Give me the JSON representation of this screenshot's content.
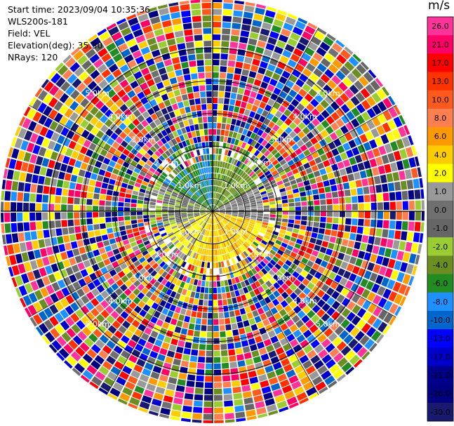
{
  "header": {
    "start_time": "Start time: 2023/09/04 10:35:36",
    "instrument": "WLS200s-181",
    "field": "Field: VEL",
    "elevation": "Elevation(deg): 35.30",
    "nrays": "NRays: 120"
  },
  "chart_data": {
    "type": "heatmap",
    "projection": "polar-ppi",
    "field": "VEL",
    "units": "m/s",
    "range_rings_km": [
      1.0,
      2.0,
      3.0,
      4.0,
      5.0
    ],
    "ring_labels": [
      "1.0km",
      "2.0km",
      "3.0km",
      "4.0km",
      "5.0km"
    ],
    "spokes_deg": [
      0,
      30,
      60,
      90,
      120,
      150,
      180,
      210,
      240,
      270,
      300,
      330
    ],
    "max_range_km": 6.5,
    "n_rays": 120,
    "colorbar": {
      "label": "m/s",
      "ticks": [
        "26.0",
        "21.0",
        "17.0",
        "13.0",
        "10.0",
        "8.0",
        "6.0",
        "4.0",
        "2.0",
        "1.0",
        "0.0",
        "-1.0",
        "-2.0",
        "-4.0",
        "-6.0",
        "-8.0",
        "-10.0",
        "-13.0",
        "-17.0",
        "-21.0",
        "-26.0",
        "-30.0"
      ],
      "colors": [
        "#ff3399",
        "#ff0066",
        "#ff0000",
        "#ff3300",
        "#ff5a1e",
        "#ff7f50",
        "#ff9900",
        "#ffcc00",
        "#ffff00",
        "#999999",
        "#707070",
        "#666666",
        "#9acd32",
        "#6b8e23",
        "#228b22",
        "#1e90ff",
        "#0066cc",
        "#0000ff",
        "#0000cd",
        "#00008b",
        "#000080",
        "#191970"
      ]
    },
    "near_field_sectors": [
      {
        "from_deg": 0,
        "to_deg": 60,
        "value": -4.0
      },
      {
        "from_deg": 60,
        "to_deg": 100,
        "value": 0.0
      },
      {
        "from_deg": 100,
        "to_deg": 200,
        "value": 4.0
      },
      {
        "from_deg": 200,
        "to_deg": 250,
        "value": 2.0
      },
      {
        "from_deg": 250,
        "to_deg": 300,
        "value": -1.0
      },
      {
        "from_deg": 300,
        "to_deg": 340,
        "value": -6.0
      },
      {
        "from_deg": 340,
        "to_deg": 360,
        "value": -8.0
      }
    ],
    "valid_data_range_km": 2.0,
    "beyond_valid_range": "noise"
  }
}
